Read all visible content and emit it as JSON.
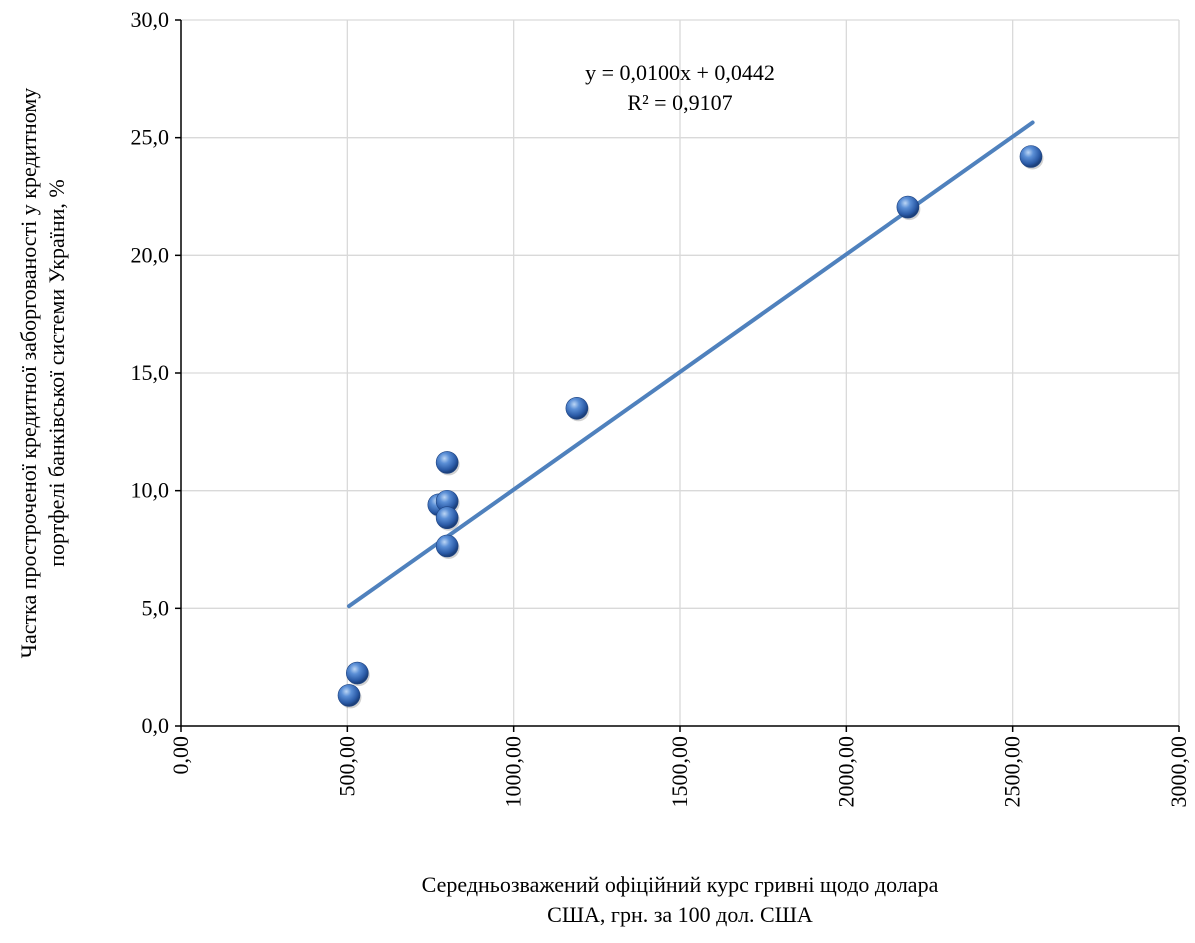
{
  "chart_data": {
    "type": "scatter",
    "title": "",
    "xlabel_lines": [
      "Середньозважений офіційний курс гривні щодо долара",
      "США, грн. за 100 дол. США"
    ],
    "ylabel_lines": [
      "Частка простроченої кредитної заборгованості у кредитному",
      "портфелі банківської системи  України, %"
    ],
    "xlim": [
      0,
      3000
    ],
    "ylim": [
      0,
      30
    ],
    "x_ticks": [
      0,
      500,
      1000,
      1500,
      2000,
      2500,
      3000
    ],
    "x_tick_labels": [
      "0,00",
      "500,00",
      "1000,00",
      "1500,00",
      "2000,00",
      "2500,00",
      "3000,00"
    ],
    "y_ticks": [
      0,
      5,
      10,
      15,
      20,
      25,
      30
    ],
    "y_tick_labels": [
      "0,0",
      "5,0",
      "10,0",
      "15,0",
      "20,0",
      "25,0",
      "30,0"
    ],
    "grid": true,
    "legend": "none",
    "series": [
      {
        "points": [
          {
            "x": 505,
            "y": 1.3
          },
          {
            "x": 530,
            "y": 2.25
          },
          {
            "x": 775,
            "y": 9.4
          },
          {
            "x": 800,
            "y": 11.2
          },
          {
            "x": 800,
            "y": 9.55
          },
          {
            "x": 800,
            "y": 8.85
          },
          {
            "x": 800,
            "y": 7.65
          },
          {
            "x": 1190,
            "y": 13.5
          },
          {
            "x": 2185,
            "y": 22.05
          },
          {
            "x": 2555,
            "y": 24.2
          }
        ],
        "color": "#3d6fb8"
      }
    ],
    "trendline": {
      "type": "linear",
      "slope": 0.01,
      "intercept": 0.0442,
      "x_range": [
        505,
        2560
      ],
      "color": "#4f81bd",
      "equation_label": "y = 0,0100x + 0,0442",
      "r2_label": "R² = 0,9107"
    }
  }
}
